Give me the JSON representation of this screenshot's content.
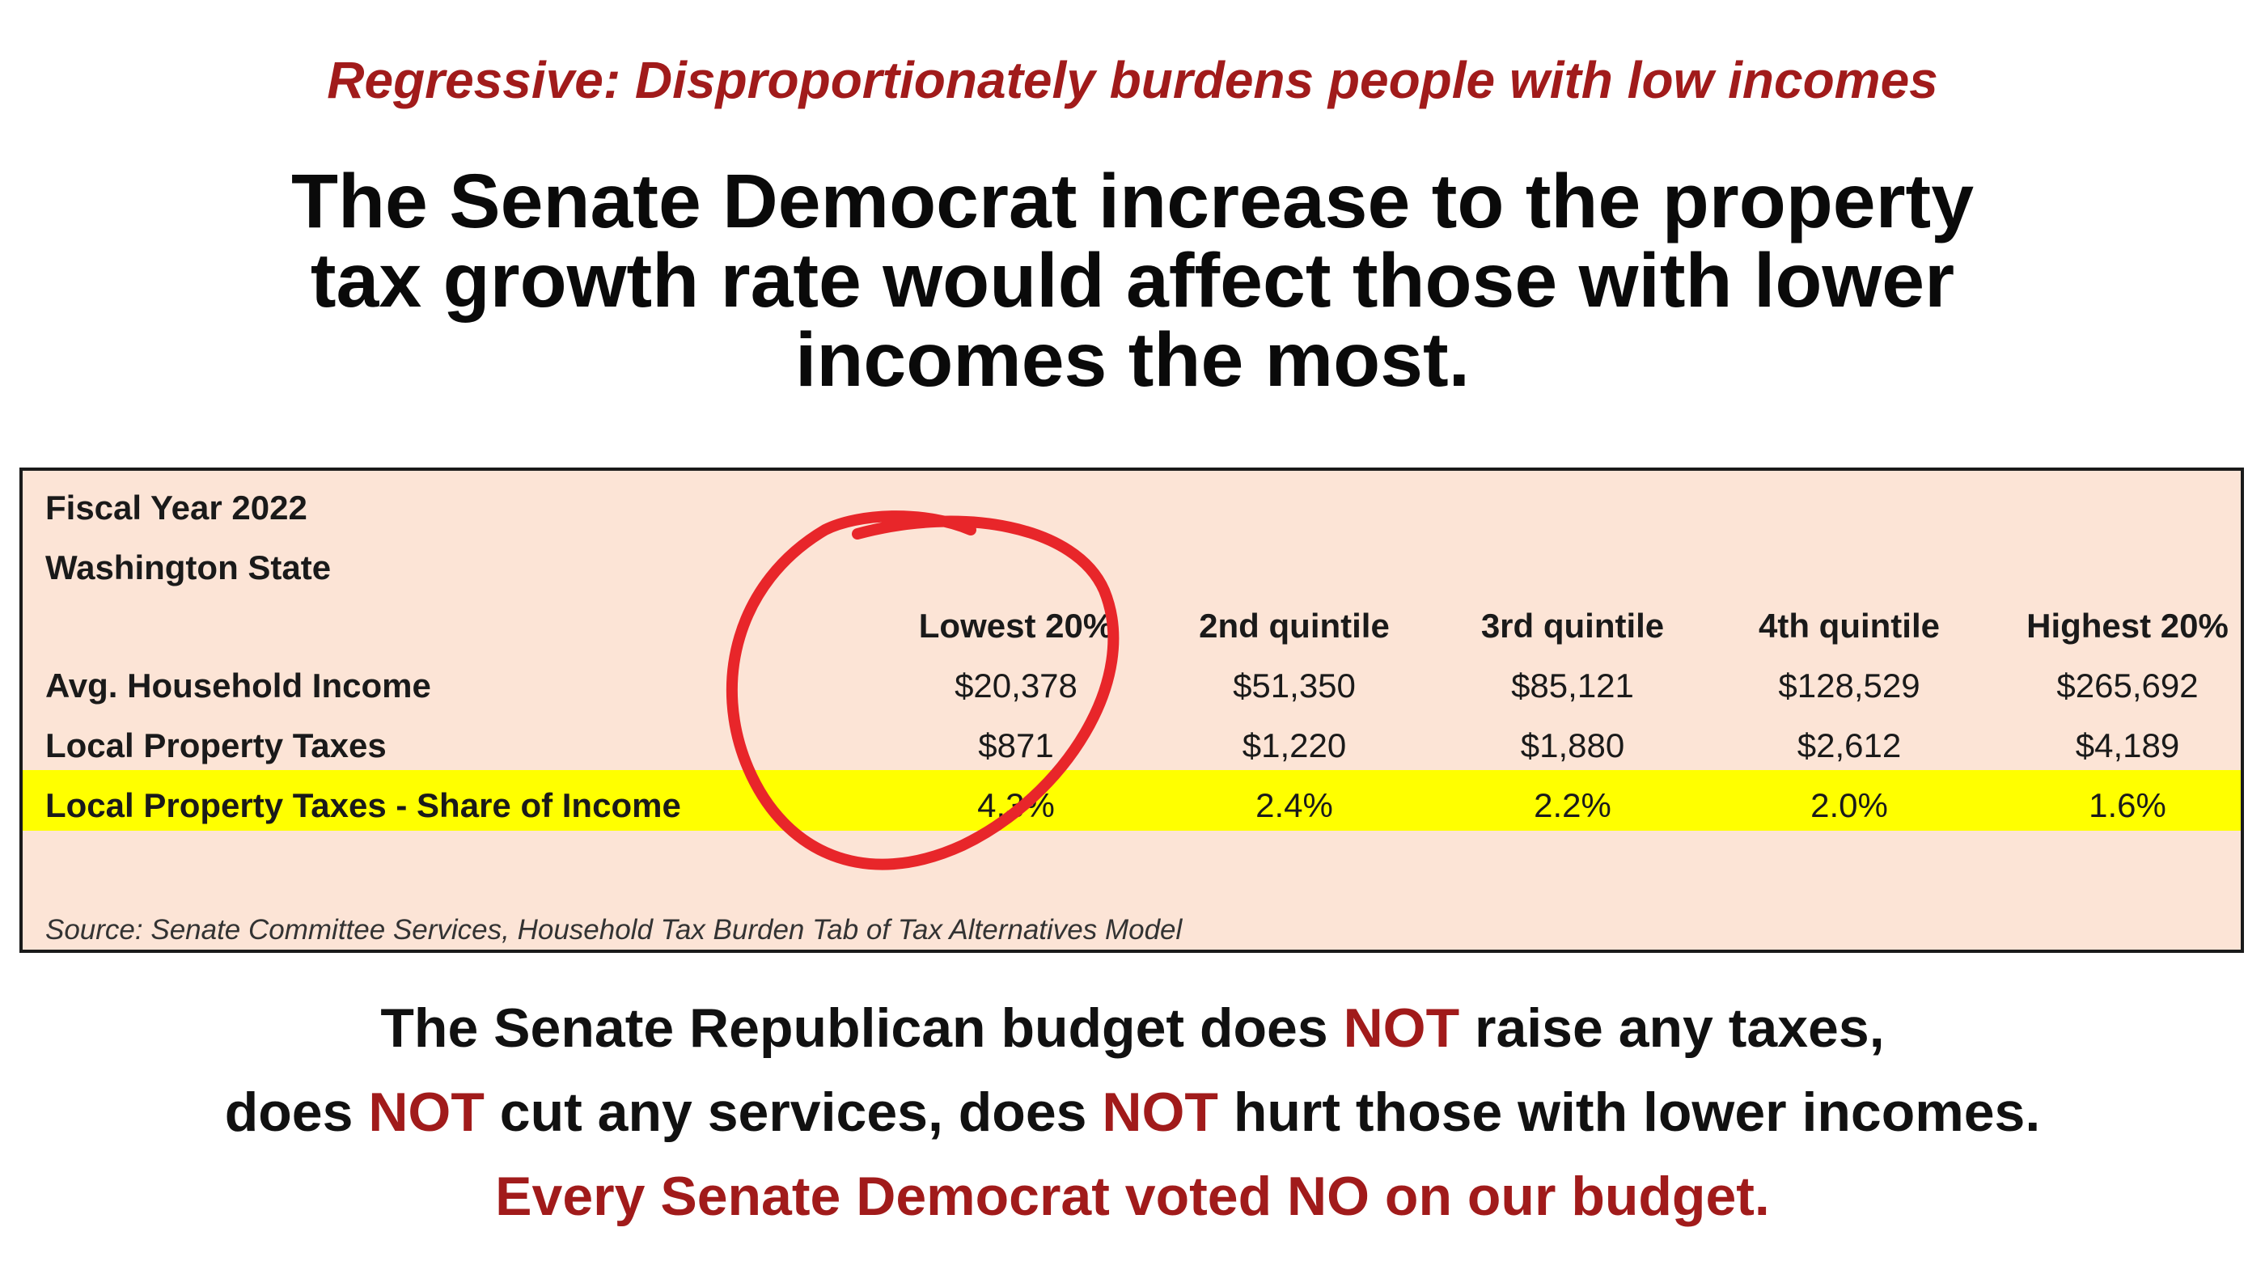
{
  "subtitle": "Regressive: Disproportionately burdens people with low incomes",
  "headline": {
    "line1": "The Senate Democrat increase to the property",
    "line2": "tax growth rate would affect those with lower",
    "line3": "incomes the most."
  },
  "table": {
    "fiscal_year": "Fiscal Year 2022",
    "state": "Washington State",
    "columns": [
      "Lowest 20%",
      "2nd quintile",
      "3rd quintile",
      "4th quintile",
      "Highest 20%"
    ],
    "rows": [
      {
        "label": "Avg. Household Income",
        "values": [
          "$20,378",
          "$51,350",
          "$85,121",
          "$128,529",
          "$265,692"
        ]
      },
      {
        "label": "Local Property Taxes",
        "values": [
          "$871",
          "$1,220",
          "$1,880",
          "$2,612",
          "$4,189"
        ]
      },
      {
        "label": "Local Property Taxes - Share of Income",
        "values": [
          "4.3%",
          "2.4%",
          "2.2%",
          "2.0%",
          "1.6%"
        ]
      }
    ],
    "source": "Source: Senate Committee Services, Household Tax Burden Tab of Tax Alternatives Model",
    "highlight_color": "#ffff00",
    "background_color": "#fce4d6"
  },
  "footer": {
    "line1_a": "The Senate Republican budget does ",
    "not": "NOT",
    "line1_b": " raise any taxes,",
    "line2_a": "does ",
    "line2_b": " cut any services, does ",
    "line2_c": " hurt those with lower incomes.",
    "line3": "Every Senate Democrat voted NO on our budget."
  },
  "colors": {
    "accent_red": "#a11b1b",
    "circle_red": "#e8262a"
  }
}
